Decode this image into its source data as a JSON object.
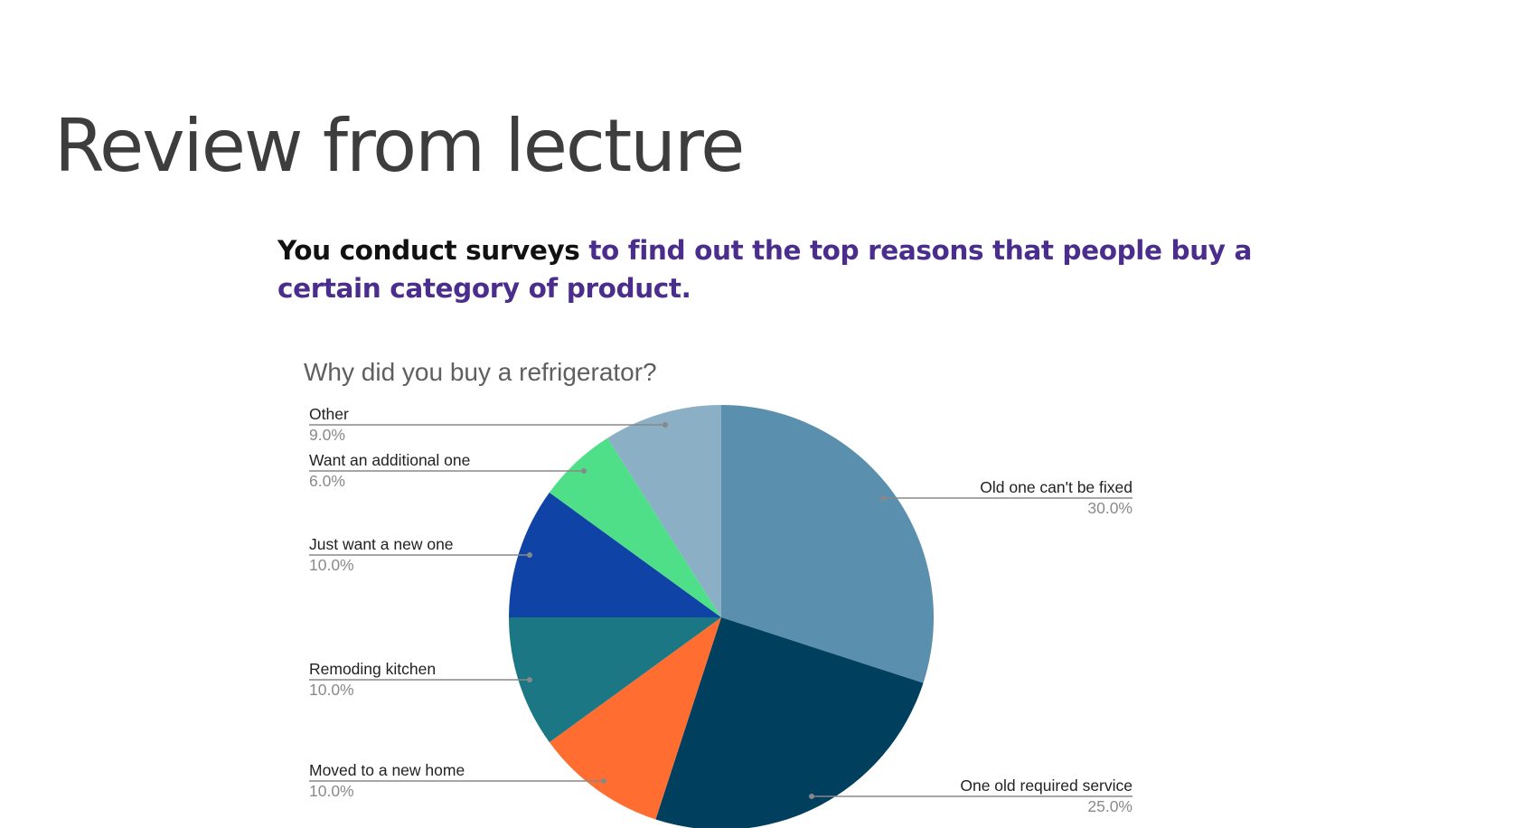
{
  "slide": {
    "title": "Review from lecture",
    "intro_black": "You conduct surveys",
    "intro_purple": "to find out the top reasons that people buy a certain category of product."
  },
  "chart_data": {
    "type": "pie",
    "title": "Why did you buy a refrigerator?",
    "start_angle_deg": 0,
    "direction": "clockwise",
    "slices": [
      {
        "label": "Old one can't be fixed",
        "value": 30.0,
        "value_label": "30.0%",
        "color": "#5a8fae",
        "side": "right"
      },
      {
        "label": "One old required service",
        "value": 25.0,
        "value_label": "25.0%",
        "color": "#00405e",
        "side": "right"
      },
      {
        "label": "Moved to a new home",
        "value": 10.0,
        "value_label": "10.0%",
        "color": "#ff6d31",
        "side": "left"
      },
      {
        "label": "Remoding kitchen",
        "value": 10.0,
        "value_label": "10.0%",
        "color": "#1c7784",
        "side": "left"
      },
      {
        "label": "Just want a new one",
        "value": 10.0,
        "value_label": "10.0%",
        "color": "#0f44a6",
        "side": "left"
      },
      {
        "label": "Want an additional one",
        "value": 6.0,
        "value_label": "6.0%",
        "color": "#4fdf88",
        "side": "left"
      },
      {
        "label": "Other",
        "value": 9.0,
        "value_label": "9.0%",
        "color": "#8bb0c6",
        "side": "left"
      }
    ],
    "colors": {
      "label_text": "#222222",
      "value_text": "#8a8a8a",
      "leader_line": "#888888",
      "title_text": "#5f5f5f"
    }
  }
}
